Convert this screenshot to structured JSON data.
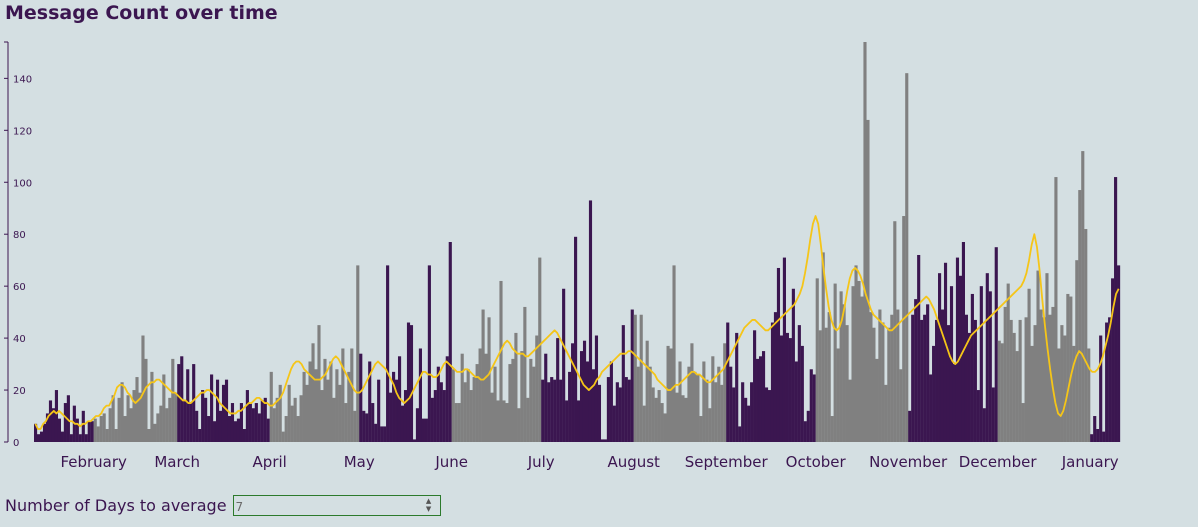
{
  "page": {
    "title": "Message Count over time",
    "controls": {
      "label": "Number of Days to average",
      "value": "7"
    }
  },
  "colors": {
    "bar_dark": "#3b1650",
    "bar_gray": "#808080",
    "line": "#f5c518",
    "text": "#3b1650"
  },
  "chart_data": {
    "type": "bar",
    "title": "Message Count over time",
    "xlabel": "",
    "ylabel": "",
    "ylim": [
      0,
      154
    ],
    "yticks": [
      0,
      20,
      40,
      60,
      80,
      100,
      120,
      140
    ],
    "x_tick_labels": [
      "February",
      "March",
      "April",
      "May",
      "June",
      "July",
      "August",
      "September",
      "October",
      "November",
      "December",
      "January"
    ],
    "months": [
      {
        "month": "January",
        "color": "dark",
        "values": [
          7,
          3,
          4,
          7,
          11,
          16,
          13,
          20,
          9,
          4,
          15,
          18,
          3,
          14,
          9,
          3,
          12,
          3,
          8,
          8
        ]
      },
      {
        "month": "February",
        "color": "gray",
        "values": [
          9,
          6,
          10,
          11,
          5,
          13,
          18,
          5,
          17,
          23,
          10,
          18,
          13,
          20,
          25,
          19,
          41,
          32,
          5,
          27,
          7,
          11,
          14,
          26,
          13,
          17,
          32,
          19
        ]
      },
      {
        "month": "March",
        "color": "dark",
        "values": [
          30,
          33,
          16,
          28,
          15,
          30,
          12,
          5,
          20,
          17,
          10,
          26,
          8,
          24,
          12,
          22,
          24,
          10,
          15,
          8,
          9,
          15,
          5,
          20,
          15,
          13,
          15,
          11,
          16,
          17,
          9
        ]
      },
      {
        "month": "April",
        "color": "gray",
        "values": [
          27,
          13,
          17,
          22,
          4,
          10,
          22,
          14,
          17,
          10,
          18,
          27,
          22,
          31,
          38,
          28,
          45,
          20,
          32,
          24,
          31,
          17,
          28,
          22,
          36,
          15,
          27,
          36,
          12,
          68
        ]
      },
      {
        "month": "May",
        "color": "dark",
        "values": [
          34,
          12,
          11,
          31,
          15,
          7,
          24,
          6,
          6,
          68,
          19,
          27,
          24,
          33,
          14,
          20,
          46,
          45,
          1,
          13,
          36,
          9,
          9,
          68,
          17,
          20,
          29,
          23,
          20,
          33,
          77
        ]
      },
      {
        "month": "June",
        "color": "gray",
        "values": [
          28,
          15,
          15,
          34,
          23,
          28,
          20,
          25,
          30,
          36,
          51,
          34,
          48,
          19,
          29,
          16,
          62,
          16,
          15,
          30,
          32,
          42,
          13,
          35,
          52,
          17,
          32,
          29,
          41,
          71
        ]
      },
      {
        "month": "July",
        "color": "dark",
        "values": [
          24,
          34,
          23,
          25,
          24,
          40,
          24,
          59,
          16,
          27,
          38,
          79,
          16,
          35,
          39,
          31,
          93,
          28,
          41,
          22,
          1,
          1,
          25,
          31,
          14,
          23,
          21,
          45,
          25,
          24,
          51
        ]
      },
      {
        "month": "August",
        "color": "gray",
        "values": [
          49,
          29,
          49,
          14,
          39,
          29,
          21,
          17,
          20,
          15,
          11,
          37,
          36,
          68,
          19,
          31,
          18,
          17,
          29,
          38,
          27,
          26,
          10,
          31,
          24,
          13,
          33,
          23,
          29,
          22,
          38
        ]
      },
      {
        "month": "September",
        "color": "dark",
        "values": [
          46,
          29,
          21,
          42,
          6,
          23,
          17,
          14,
          23,
          43,
          32,
          33,
          35,
          21,
          20,
          46,
          50,
          67,
          41,
          71,
          42,
          40,
          59,
          31,
          45,
          37,
          8,
          12,
          28,
          26
        ]
      },
      {
        "month": "October",
        "color": "gray",
        "values": [
          63,
          43,
          73,
          44,
          50,
          10,
          61,
          36,
          58,
          53,
          45,
          24,
          60,
          68,
          62,
          56,
          154,
          124,
          50,
          44,
          32,
          51,
          46,
          22,
          44,
          49,
          85,
          51,
          28,
          87,
          142
        ]
      },
      {
        "month": "November",
        "color": "dark",
        "values": [
          12,
          49,
          55,
          72,
          47,
          49,
          53,
          26,
          37,
          47,
          65,
          51,
          69,
          45,
          60,
          30,
          71,
          64,
          77,
          49,
          42,
          57,
          47,
          20,
          60,
          13,
          65,
          58,
          21,
          75
        ]
      },
      {
        "month": "December",
        "color": "gray",
        "values": [
          39,
          38,
          52,
          61,
          47,
          42,
          35,
          47,
          15,
          48,
          59,
          37,
          45,
          66,
          51,
          48,
          65,
          49,
          52,
          102,
          36,
          45,
          41,
          57,
          56,
          37,
          70,
          97,
          112,
          82,
          36
        ]
      },
      {
        "month": "January",
        "color": "dark",
        "values": [
          3,
          10,
          5,
          41,
          4,
          46,
          48,
          63,
          102,
          68
        ]
      }
    ],
    "series": [
      {
        "type": "line",
        "description": "Moving average (7 days)",
        "values": [
          7,
          5,
          5,
          7,
          8,
          10,
          11,
          12,
          11,
          12,
          11,
          10,
          9,
          8,
          8,
          7,
          7,
          6,
          7,
          7,
          8,
          8,
          9,
          10,
          10,
          11,
          13,
          14,
          14,
          16,
          18,
          21,
          22,
          22,
          21,
          19,
          18,
          16,
          15,
          16,
          17,
          19,
          21,
          22,
          23,
          23,
          24,
          24,
          23,
          22,
          21,
          20,
          19,
          19,
          18,
          17,
          16,
          16,
          15,
          15,
          16,
          17,
          18,
          19,
          19,
          20,
          20,
          19,
          18,
          17,
          15,
          14,
          13,
          12,
          11,
          11,
          11,
          12,
          12,
          13,
          14,
          15,
          15,
          16,
          17,
          17,
          16,
          15,
          15,
          14,
          14,
          15,
          16,
          17,
          19,
          22,
          25,
          28,
          30,
          31,
          31,
          30,
          28,
          27,
          26,
          25,
          24,
          24,
          24,
          25,
          26,
          28,
          30,
          32,
          33,
          32,
          30,
          28,
          26,
          24,
          22,
          20,
          19,
          19,
          20,
          22,
          24,
          26,
          28,
          30,
          31,
          30,
          29,
          28,
          26,
          24,
          22,
          19,
          17,
          16,
          15,
          16,
          17,
          19,
          21,
          23,
          25,
          27,
          27,
          26,
          26,
          25,
          25,
          26,
          28,
          30,
          31,
          30,
          29,
          28,
          27,
          27,
          27,
          28,
          28,
          27,
          26,
          25,
          25,
          24,
          24,
          25,
          26,
          28,
          30,
          32,
          34,
          36,
          38,
          39,
          38,
          36,
          35,
          34,
          34,
          34,
          33,
          33,
          34,
          35,
          36,
          37,
          38,
          39,
          40,
          41,
          42,
          43,
          42,
          40,
          38,
          36,
          34,
          32,
          30,
          28,
          26,
          24,
          22,
          21,
          20,
          21,
          22,
          24,
          25,
          27,
          28,
          29,
          30,
          31,
          32,
          33,
          34,
          34,
          34,
          35,
          35,
          34,
          33,
          32,
          31,
          30,
          29,
          28,
          27,
          26,
          24,
          23,
          22,
          21,
          20,
          20,
          21,
          22,
          22,
          23,
          24,
          25,
          26,
          27,
          27,
          26,
          26,
          25,
          24,
          23,
          23,
          24,
          25,
          26,
          27,
          28,
          30,
          32,
          34,
          36,
          38,
          40,
          42,
          44,
          45,
          46,
          47,
          47,
          46,
          45,
          44,
          43,
          43,
          44,
          45,
          46,
          47,
          48,
          49,
          50,
          51,
          52,
          53,
          55,
          57,
          60,
          65,
          71,
          78,
          84,
          87,
          84,
          76,
          67,
          59,
          52,
          47,
          44,
          43,
          44,
          47,
          52,
          58,
          63,
          66,
          67,
          66,
          64,
          61,
          57,
          54,
          51,
          49,
          48,
          47,
          46,
          45,
          44,
          43,
          43,
          44,
          45,
          46,
          47,
          48,
          49,
          50,
          51,
          52,
          53,
          54,
          55,
          56,
          55,
          53,
          51,
          48,
          45,
          42,
          39,
          36,
          33,
          31,
          30,
          31,
          33,
          35,
          37,
          39,
          41,
          42,
          43,
          44,
          45,
          46,
          47,
          48,
          49,
          50,
          51,
          52,
          53,
          54,
          55,
          56,
          57,
          58,
          59,
          60,
          62,
          65,
          70,
          76,
          80,
          75,
          66,
          55,
          45,
          36,
          28,
          21,
          15,
          11,
          10,
          12,
          16,
          21,
          26,
          30,
          33,
          35,
          34,
          32,
          30,
          28,
          27,
          27,
          28,
          30,
          33,
          37,
          41,
          46,
          52,
          57,
          59
        ]
      }
    ]
  }
}
